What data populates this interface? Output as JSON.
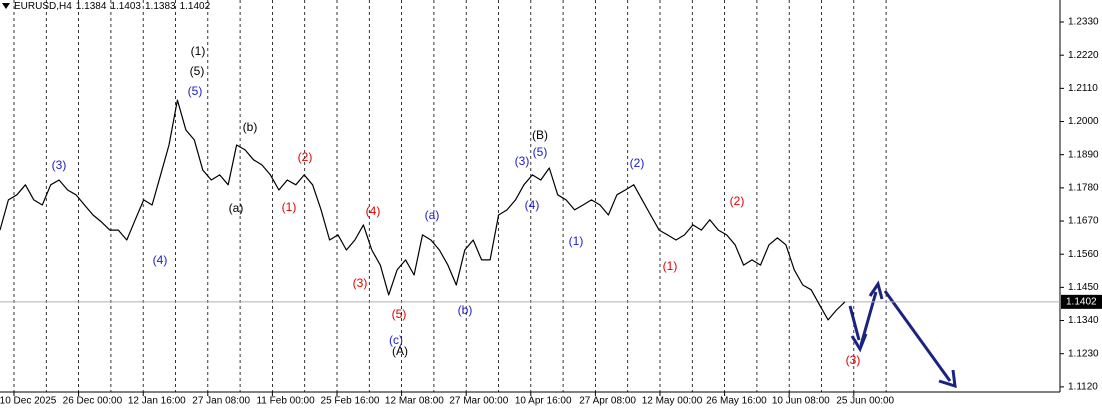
{
  "chart_data": {
    "type": "line",
    "symbol": "EURUSD,H4",
    "ohlc": [
      1.1384,
      1.1403,
      1.1383,
      1.1402
    ],
    "last_price": 1.1402,
    "color": "#000000",
    "ylim": [
      1.1103,
      1.2403
    ],
    "yticks": [
      {
        "value": 1.233,
        "label": "1.2330"
      },
      {
        "value": 1.222,
        "label": "1.2220"
      },
      {
        "value": 1.211,
        "label": "1.2110"
      },
      {
        "value": 1.2,
        "label": "1.2000"
      },
      {
        "value": 1.189,
        "label": "1.1890"
      },
      {
        "value": 1.178,
        "label": "1.1780"
      },
      {
        "value": 1.167,
        "label": "1.1670"
      },
      {
        "value": 1.156,
        "label": "1.1560"
      },
      {
        "value": 1.145,
        "label": "1.1450"
      },
      {
        "value": 1.134,
        "label": "1.1340"
      },
      {
        "value": 1.123,
        "label": "1.1230"
      },
      {
        "value": 1.112,
        "label": "1.1120"
      }
    ],
    "x_labels": [
      "10 Dec 2025",
      "26 Dec 00:00",
      "12 Jan 16:00",
      "27 Jan 08:00",
      "11 Feb 00:00",
      "25 Feb 16:00",
      "12 Mar 08:00",
      "27 Mar 00:00",
      "10 Apr 16:00",
      "27 Apr 08:00",
      "12 May 00:00",
      "26 May 16:00",
      "10 Jun 08:00",
      "25 Jun 00:00"
    ],
    "values": [
      1.164,
      1.174,
      1.1757,
      1.179,
      1.174,
      1.1723,
      1.179,
      1.1806,
      1.1773,
      1.1757,
      1.1723,
      1.169,
      1.1667,
      1.164,
      1.164,
      1.1607,
      1.1674,
      1.174,
      1.1723,
      1.1823,
      1.1922,
      1.2071,
      1.1972,
      1.1939,
      1.1839,
      1.1806,
      1.1823,
      1.179,
      1.1922,
      1.1906,
      1.1873,
      1.1856,
      1.1823,
      1.1773,
      1.1806,
      1.179,
      1.1823,
      1.179,
      1.1707,
      1.1607,
      1.1624,
      1.1574,
      1.1607,
      1.1657,
      1.1574,
      1.1524,
      1.1425,
      1.1508,
      1.1541,
      1.1491,
      1.1624,
      1.1607,
      1.1574,
      1.1524,
      1.1458,
      1.1574,
      1.1607,
      1.1541,
      1.1541,
      1.169,
      1.1707,
      1.174,
      1.179,
      1.1823,
      1.1806,
      1.1846,
      1.1757,
      1.174,
      1.1707,
      1.1723,
      1.174,
      1.1723,
      1.169,
      1.1757,
      1.1773,
      1.179,
      1.174,
      1.169,
      1.164,
      1.1624,
      1.1607,
      1.1624,
      1.1657,
      1.164,
      1.1674,
      1.164,
      1.1624,
      1.1591,
      1.1524,
      1.1541,
      1.1524,
      1.1591,
      1.1614,
      1.1591,
      1.1508,
      1.1458,
      1.1442,
      1.1392,
      1.1342,
      1.1375,
      1.1402
    ],
    "annotations": [
      {
        "text": "(3)",
        "color": "#1c1cc8"
      },
      {
        "text": "(4)",
        "color": "#1c1cc8"
      },
      {
        "text": "(1)",
        "color": "#000000"
      },
      {
        "text": "(5)",
        "color": "#000000"
      },
      {
        "text": "(5)",
        "color": "#1c1cc8"
      },
      {
        "text": "(a)",
        "color": "#000000"
      },
      {
        "text": "(b)",
        "color": "#000000"
      },
      {
        "text": "(1)",
        "color": "#e00000"
      },
      {
        "text": "(2)",
        "color": "#e00000"
      },
      {
        "text": "(3)",
        "color": "#e00000"
      },
      {
        "text": "(4)",
        "color": "#e00000"
      },
      {
        "text": "(5)",
        "color": "#e00000"
      },
      {
        "text": "(c)",
        "color": "#1c1cc8"
      },
      {
        "text": "(A)",
        "color": "#000000"
      },
      {
        "text": "(a)",
        "color": "#1c1cc8"
      },
      {
        "text": "(b)",
        "color": "#1c1cc8"
      },
      {
        "text": "(3)",
        "color": "#1c1cc8"
      },
      {
        "text": "(4)",
        "color": "#1c1cc8"
      },
      {
        "text": "(5)",
        "color": "#1c1cc8"
      },
      {
        "text": "(B)",
        "color": "#000000"
      },
      {
        "text": "(1)",
        "color": "#1c1cc8"
      },
      {
        "text": "(2)",
        "color": "#1c1cc8"
      },
      {
        "text": "(1)",
        "color": "#e00000"
      },
      {
        "text": "(2)",
        "color": "#e00000"
      },
      {
        "text": "(3)",
        "color": "#e00000"
      }
    ]
  }
}
